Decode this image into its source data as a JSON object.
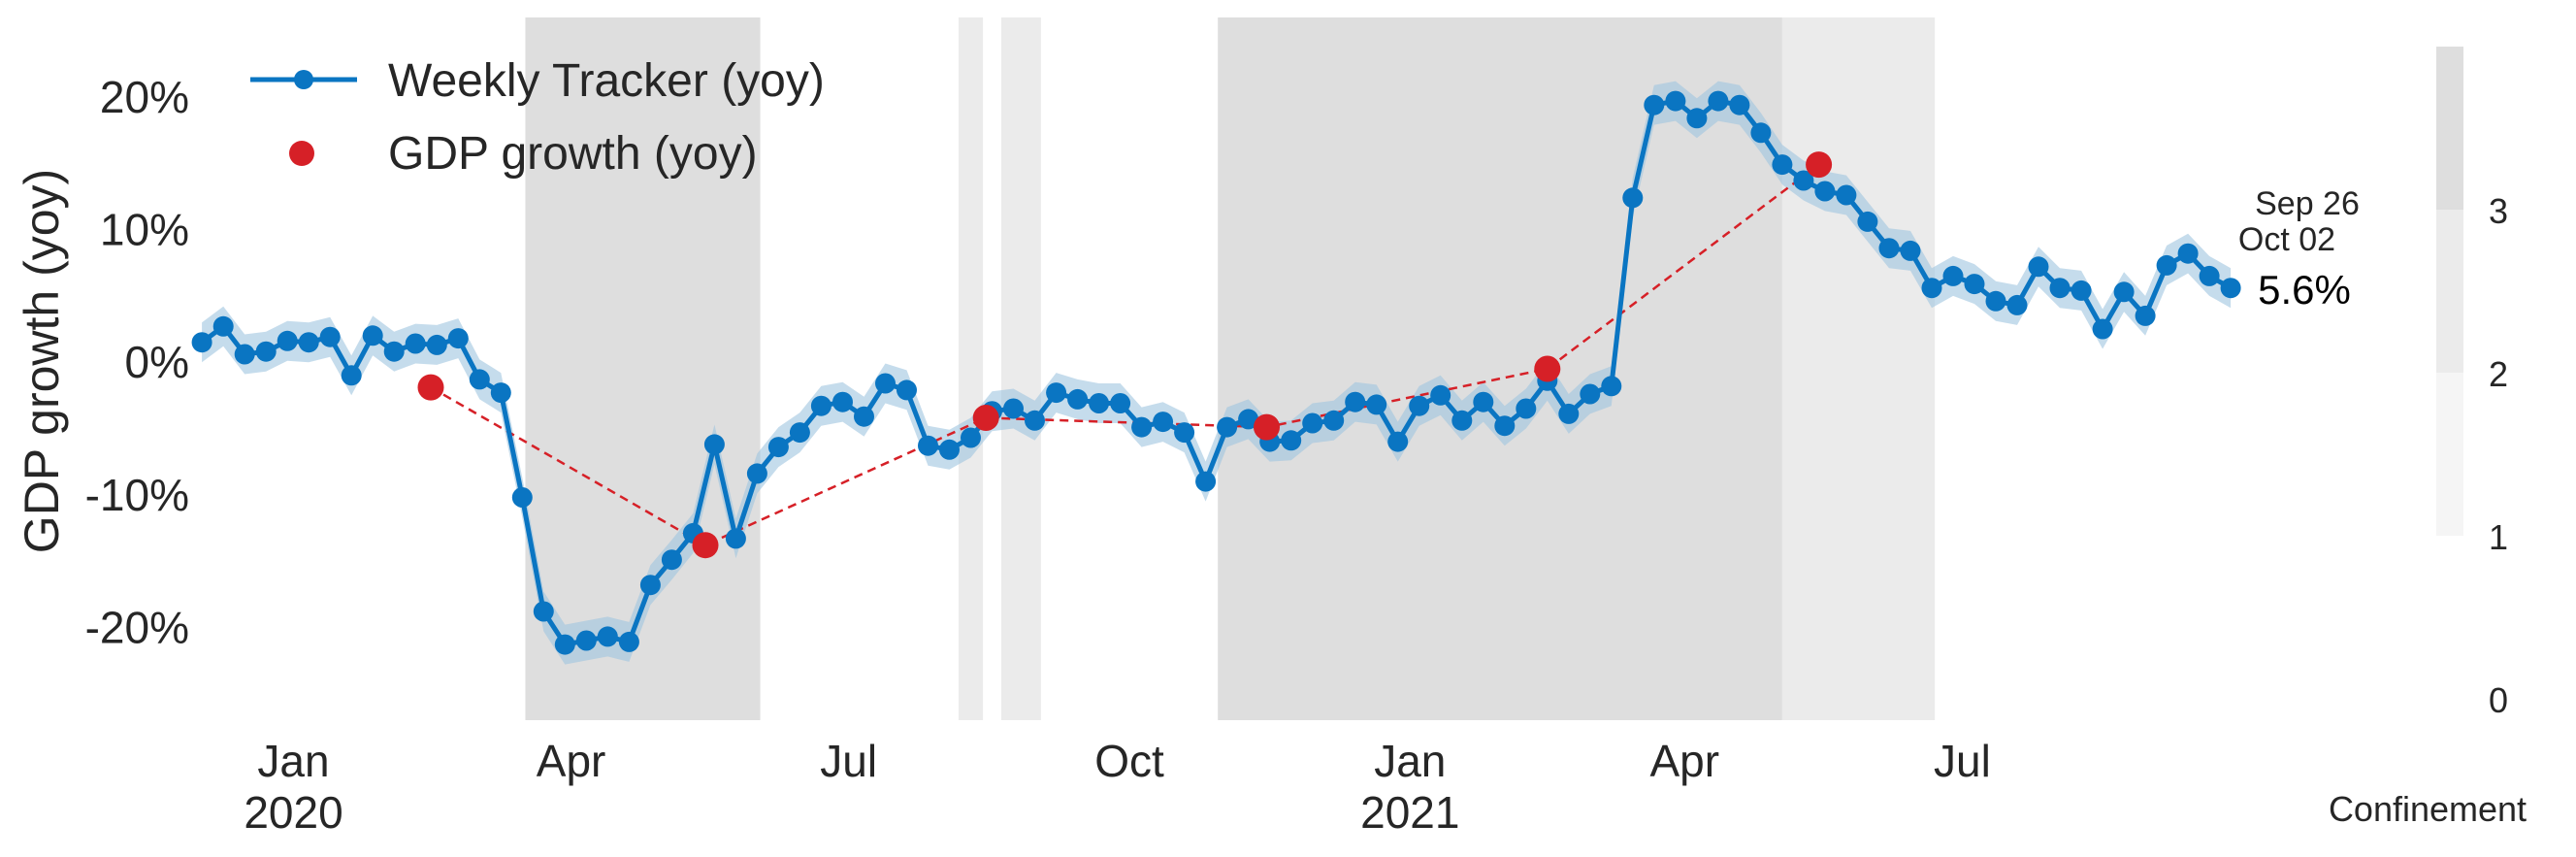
{
  "chart_data": {
    "type": "line",
    "title": "",
    "ylabel": "GDP growth (yoy)",
    "ylim": [
      -27,
      26
    ],
    "yticks": [
      {
        "value": 20,
        "label": "20%"
      },
      {
        "value": 10,
        "label": "10%"
      },
      {
        "value": 0,
        "label": "0%"
      },
      {
        "value": -10,
        "label": "-10%"
      },
      {
        "value": -20,
        "label": "-20%"
      }
    ],
    "xlim": [
      "2019-12-01",
      "2021-10-10"
    ],
    "xticks": [
      {
        "date": "2020-01-01",
        "label": "Jan",
        "year": "2020"
      },
      {
        "date": "2020-04-01",
        "label": "Apr",
        "year": ""
      },
      {
        "date": "2020-07-01",
        "label": "Jul",
        "year": ""
      },
      {
        "date": "2020-10-01",
        "label": "Oct",
        "year": ""
      },
      {
        "date": "2021-01-01",
        "label": "Jan",
        "year": "2021"
      },
      {
        "date": "2021-04-01",
        "label": "Apr",
        "year": ""
      },
      {
        "date": "2021-07-01",
        "label": "Jul",
        "year": ""
      }
    ],
    "grid": false,
    "legend": {
      "position": "top-left",
      "entries": [
        {
          "label": "Weekly Tracker (yoy)",
          "marker": "line-dot",
          "color": "#0a75c2"
        },
        {
          "label": "GDP growth (yoy)",
          "marker": "dot",
          "color": "#d62027"
        }
      ]
    },
    "confinement_bands": [
      {
        "start": "2020-03-17",
        "end": "2020-06-02",
        "level": 3
      },
      {
        "start": "2020-08-06",
        "end": "2020-08-14",
        "level": 2
      },
      {
        "start": "2020-08-20",
        "end": "2020-09-02",
        "level": 2
      },
      {
        "start": "2020-10-30",
        "end": "2021-05-03",
        "level": 3
      },
      {
        "start": "2021-05-03",
        "end": "2021-06-22",
        "level": 2
      }
    ],
    "weekly_tracker": {
      "name": "Weekly Tracker (yoy)",
      "color": "#0a75c2",
      "start_date": "2019-12-02",
      "step_days": 7,
      "values": [
        1.5,
        2.7,
        0.6,
        0.8,
        1.6,
        1.5,
        1.9,
        -1.0,
        2.0,
        0.8,
        1.4,
        1.3,
        1.8,
        -1.3,
        -2.3,
        -10.2,
        -18.8,
        -21.3,
        -21.0,
        -20.7,
        -21.1,
        -16.8,
        -14.9,
        -12.9,
        -6.2,
        -13.3,
        -8.4,
        -6.4,
        -5.3,
        -3.3,
        -3.0,
        -4.1,
        -1.6,
        -2.1,
        -6.3,
        -6.6,
        -5.7,
        -3.7,
        -3.5,
        -4.4,
        -2.3,
        -2.8,
        -3.1,
        -3.1,
        -4.9,
        -4.5,
        -5.3,
        -9.0,
        -4.9,
        -4.3,
        -6.0,
        -5.9,
        -4.6,
        -4.4,
        -3.0,
        -3.2,
        -6.0,
        -3.3,
        -2.5,
        -4.4,
        -3.0,
        -4.8,
        -3.5,
        -1.4,
        -3.9,
        -2.4,
        -1.8,
        12.4,
        19.4,
        19.7,
        18.4,
        19.7,
        19.4,
        17.3,
        14.9,
        13.7,
        12.9,
        12.6,
        10.6,
        8.6,
        8.4,
        5.6,
        6.5,
        5.9,
        4.6,
        4.3,
        7.2,
        5.6,
        5.4,
        2.5,
        5.3,
        3.5,
        7.3,
        8.2,
        6.5,
        5.6
      ],
      "band_halfwidth": 1.5
    },
    "gdp_growth": {
      "name": "GDP growth (yoy)",
      "color": "#d62027",
      "points": [
        {
          "date": "2020-02-15",
          "value": -1.9
        },
        {
          "date": "2020-05-15",
          "value": -13.8
        },
        {
          "date": "2020-08-15",
          "value": -4.2
        },
        {
          "date": "2020-11-15",
          "value": -4.9
        },
        {
          "date": "2021-02-15",
          "value": -0.5
        },
        {
          "date": "2021-05-15",
          "value": 14.9
        }
      ]
    },
    "annotation": {
      "dates": [
        "Sep 26",
        "Oct 02"
      ],
      "value": "5.6%"
    },
    "colorbar": {
      "label": "Confinement",
      "range": [
        0,
        4
      ],
      "ticks": [
        0,
        1,
        2,
        3
      ],
      "colors": [
        "#ffffff",
        "#f5f5f5",
        "#ebebeb",
        "#dedede"
      ]
    }
  }
}
